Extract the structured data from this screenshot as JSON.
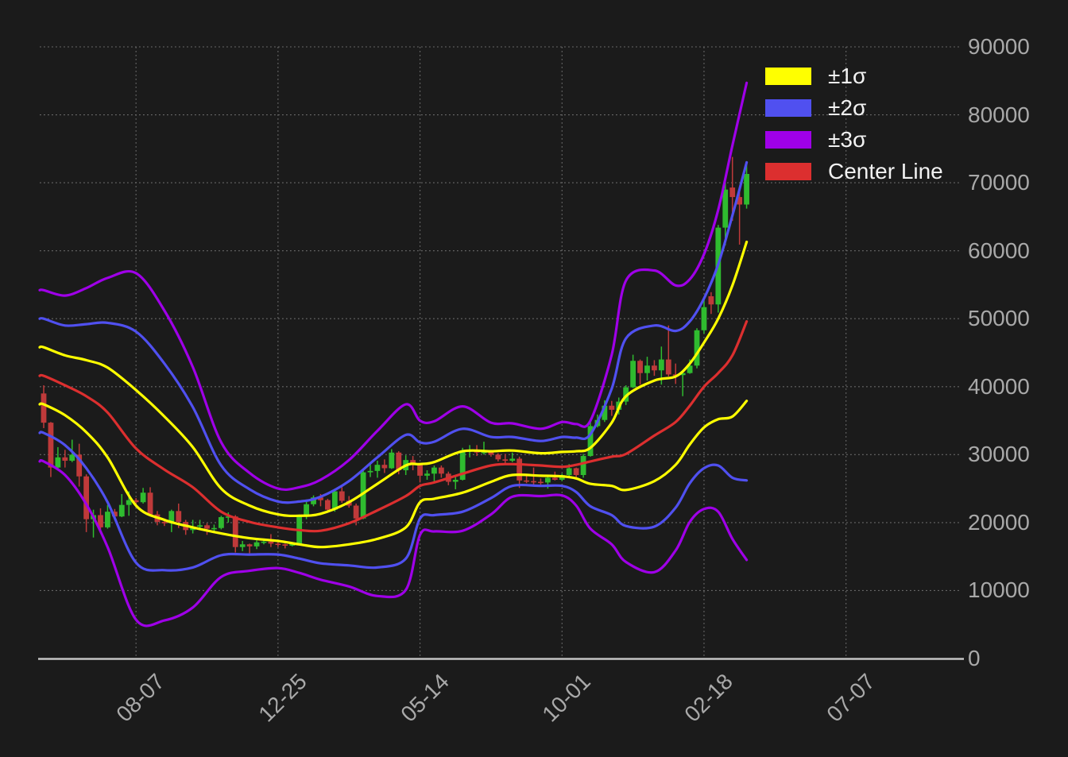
{
  "chart_data": {
    "type": "candlestick",
    "title": "",
    "ylabel": "",
    "xlabel": "",
    "ylim": [
      0,
      90000
    ],
    "grid": "dotted",
    "legend_position": "upper-right",
    "y_ticks": [
      {
        "value": 0,
        "label": "0"
      },
      {
        "value": 10000,
        "label": "10000"
      },
      {
        "value": 20000,
        "label": "20000"
      },
      {
        "value": 30000,
        "label": "30000"
      },
      {
        "value": 40000,
        "label": "40000"
      },
      {
        "value": 50000,
        "label": "50000"
      },
      {
        "value": 60000,
        "label": "60000"
      },
      {
        "value": 70000,
        "label": "70000"
      },
      {
        "value": 80000,
        "label": "80000"
      },
      {
        "value": 90000,
        "label": "90000"
      }
    ],
    "x_ticks": [
      {
        "index": 13,
        "label": "08-07"
      },
      {
        "index": 33,
        "label": "12-25"
      },
      {
        "index": 53,
        "label": "05-14"
      },
      {
        "index": 73,
        "label": "10-01"
      },
      {
        "index": 93,
        "label": "02-18"
      },
      {
        "index": 113,
        "label": "07-07"
      }
    ],
    "legend": [
      {
        "label": "±1σ",
        "color": "#ffff00"
      },
      {
        "label": "±2σ",
        "color": "#5050f0"
      },
      {
        "label": "±3σ",
        "color": "#9f00e8"
      },
      {
        "label": "Center Line",
        "color": "#dc2f2f"
      }
    ],
    "candles": {
      "up_color": "#2fbb2f",
      "down_color": "#bf3a3a",
      "ohlc": [
        [
          39000,
          40200,
          33900,
          34700
        ],
        [
          34700,
          34800,
          26700,
          28100
        ],
        [
          28100,
          31100,
          27900,
          29600
        ],
        [
          29600,
          30700,
          28100,
          29100
        ],
        [
          29100,
          32200,
          28900,
          30000
        ],
        [
          30000,
          31600,
          25300,
          26800
        ],
        [
          26800,
          27100,
          18600,
          20500
        ],
        [
          20500,
          21900,
          17800,
          21100
        ],
        [
          21100,
          22100,
          18900,
          19300
        ],
        [
          19300,
          22600,
          19100,
          21600
        ],
        [
          21600,
          22000,
          20700,
          20900
        ],
        [
          20900,
          24200,
          20800,
          22600
        ],
        [
          22600,
          24600,
          21000,
          23300
        ],
        [
          23300,
          23600,
          22200,
          23000
        ],
        [
          23000,
          25100,
          22800,
          24400
        ],
        [
          24400,
          25200,
          20900,
          21200
        ],
        [
          21200,
          21700,
          19600,
          20100
        ],
        [
          20100,
          20600,
          19500,
          19900
        ],
        [
          19900,
          21900,
          18600,
          21700
        ],
        [
          21700,
          22800,
          19200,
          20100
        ],
        [
          20100,
          20400,
          18200,
          18900
        ],
        [
          18900,
          20400,
          18400,
          19400
        ],
        [
          19400,
          20400,
          19000,
          19600
        ],
        [
          19600,
          19900,
          18200,
          19100
        ],
        [
          19100,
          19700,
          18600,
          19200
        ],
        [
          19200,
          21000,
          19000,
          20800
        ],
        [
          20800,
          21500,
          20000,
          20900
        ],
        [
          20900,
          21100,
          15600,
          16400
        ],
        [
          16400,
          17300,
          15800,
          16800
        ],
        [
          16800,
          16900,
          15500,
          16500
        ],
        [
          16500,
          17400,
          16100,
          17100
        ],
        [
          17100,
          17500,
          16800,
          17200
        ],
        [
          17200,
          18300,
          16400,
          16900
        ],
        [
          16900,
          17100,
          16400,
          16800
        ],
        [
          16800,
          16900,
          16200,
          16600
        ],
        [
          16600,
          17100,
          16500,
          16900
        ],
        [
          16900,
          21200,
          16800,
          20900
        ],
        [
          20900,
          23300,
          20500,
          22700
        ],
        [
          22700,
          24000,
          22400,
          23700
        ],
        [
          23700,
          24200,
          22400,
          23300
        ],
        [
          23300,
          23500,
          21500,
          21900
        ],
        [
          21900,
          25000,
          21600,
          24600
        ],
        [
          24600,
          25200,
          22900,
          23200
        ],
        [
          23200,
          23900,
          22200,
          22500
        ],
        [
          22500,
          22800,
          19600,
          20600
        ],
        [
          20600,
          27700,
          20500,
          27400
        ],
        [
          27400,
          28800,
          26700,
          27600
        ],
        [
          27600,
          29100,
          26600,
          28500
        ],
        [
          28500,
          29300,
          27300,
          28000
        ],
        [
          28000,
          30800,
          27900,
          30300
        ],
        [
          30300,
          30500,
          27100,
          27700
        ],
        [
          27700,
          29900,
          27000,
          29200
        ],
        [
          29200,
          29800,
          27700,
          28700
        ],
        [
          28700,
          28800,
          25900,
          26900
        ],
        [
          26900,
          27700,
          26300,
          27200
        ],
        [
          27200,
          28400,
          26000,
          28100
        ],
        [
          28100,
          28400,
          26600,
          27200
        ],
        [
          27200,
          27500,
          25500,
          26000
        ],
        [
          26000,
          26900,
          24900,
          26300
        ],
        [
          26300,
          31000,
          26200,
          30500
        ],
        [
          30500,
          31400,
          29600,
          30700
        ],
        [
          30700,
          31400,
          29800,
          30300
        ],
        [
          30300,
          31900,
          30000,
          30400
        ],
        [
          30400,
          30500,
          29700,
          30000
        ],
        [
          30000,
          30200,
          29000,
          29300
        ],
        [
          29300,
          30100,
          28700,
          29100
        ],
        [
          29100,
          30300,
          28900,
          29400
        ],
        [
          29400,
          29700,
          25100,
          26200
        ],
        [
          26200,
          26900,
          25800,
          26100
        ],
        [
          26100,
          28100,
          25500,
          26000
        ],
        [
          26000,
          26500,
          25400,
          25900
        ],
        [
          25900,
          26900,
          25000,
          26600
        ],
        [
          26600,
          27500,
          26200,
          26300
        ],
        [
          26300,
          27200,
          26100,
          27000
        ],
        [
          27000,
          28600,
          26600,
          28000
        ],
        [
          28000,
          28100,
          26600,
          27000
        ],
        [
          27000,
          30100,
          26600,
          29800
        ],
        [
          29800,
          35100,
          29700,
          34200
        ],
        [
          34200,
          35900,
          34000,
          35100
        ],
        [
          35100,
          38000,
          34800,
          37200
        ],
        [
          37200,
          37900,
          35700,
          36600
        ],
        [
          36600,
          38400,
          35900,
          37800
        ],
        [
          37800,
          40200,
          37300,
          39900
        ],
        [
          39900,
          44700,
          39800,
          43800
        ],
        [
          43800,
          44000,
          40300,
          42000
        ],
        [
          42000,
          44400,
          40900,
          43100
        ],
        [
          43100,
          43900,
          41600,
          42400
        ],
        [
          42400,
          45900,
          40300,
          44000
        ],
        [
          44000,
          49000,
          41500,
          41800
        ],
        [
          41800,
          43400,
          40400,
          41700
        ],
        [
          41700,
          42300,
          38600,
          42000
        ],
        [
          42000,
          44000,
          41900,
          43100
        ],
        [
          43100,
          48600,
          42700,
          48300
        ],
        [
          48300,
          53000,
          47800,
          51700
        ],
        [
          53300,
          53900,
          50700,
          52100
        ],
        [
          52100,
          63800,
          50900,
          63400
        ],
        [
          63400,
          70300,
          60800,
          69000
        ],
        [
          69300,
          73800,
          64400,
          67900
        ],
        [
          67900,
          68800,
          60900,
          66800
        ],
        [
          66800,
          72700,
          66200,
          71300
        ]
      ]
    },
    "bands": {
      "center_color": "#dc2f2f",
      "sigma1_color": "#ffff00",
      "sigma2_color": "#5050f0",
      "sigma3_color": "#9f00e8",
      "anchor_index": [
        0,
        3,
        6,
        9,
        13,
        17,
        21,
        25,
        29,
        33,
        36,
        39,
        43,
        47,
        51,
        53,
        55,
        59,
        63,
        66,
        70,
        73,
        75,
        77,
        80,
        82,
        86,
        89,
        91,
        93,
        95,
        97,
        99
      ],
      "center": [
        41600,
        40200,
        38600,
        36200,
        30900,
        27800,
        25200,
        21600,
        20100,
        19300,
        18900,
        18800,
        19900,
        21800,
        23900,
        25400,
        25900,
        27200,
        28400,
        28600,
        28400,
        28200,
        28500,
        29000,
        29700,
        30100,
        32800,
        34800,
        37200,
        40000,
        42000,
        44600,
        49600
      ],
      "sigma_up": [
        4200,
        4400,
        5300,
        6600,
        8600,
        7800,
        5900,
        3400,
        2400,
        1900,
        2100,
        2500,
        3100,
        3900,
        4500,
        3200,
        3000,
        3300,
        2100,
        2000,
        1800,
        2200,
        2000,
        2000,
        5000,
        8500,
        8100,
        6700,
        6200,
        6500,
        8000,
        10300,
        11700
      ],
      "sigma_down": [
        4200,
        4400,
        5300,
        6600,
        8400,
        7400,
        5900,
        3200,
        2400,
        2000,
        2100,
        2400,
        3100,
        4200,
        4600,
        2400,
        2400,
        2800,
        2400,
        1600,
        1500,
        1400,
        2000,
        3300,
        4300,
        5300,
        6700,
        6300,
        5700,
        6000,
        6800,
        9000,
        11700
      ]
    }
  },
  "theme": {
    "background": "#1b1b1b",
    "grid_color": "#828282",
    "axis_color": "#c4c4c4",
    "tick_text_color": "#a9a9a9",
    "legend_text_color": "#f2f2f2"
  }
}
